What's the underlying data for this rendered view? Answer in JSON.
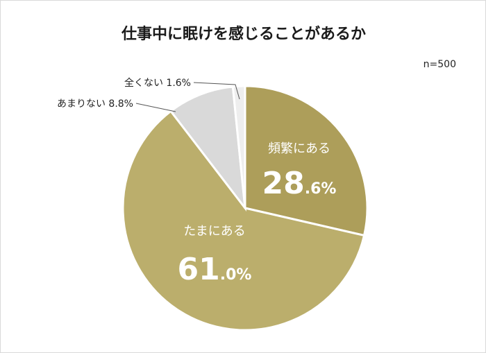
{
  "title": "仕事中に眠けを感じることがあるか",
  "sample_size": "n=500",
  "chart_data": {
    "type": "pie",
    "title": "仕事中に眠けを感じることがあるか",
    "slices": [
      {
        "label": "頻繁にある",
        "value": 28.6,
        "display_int": "28",
        "display_dec": ".6%",
        "color": "#ad9e5a",
        "label_mode": "inside"
      },
      {
        "label": "たまにある",
        "value": 61.0,
        "display_int": "61",
        "display_dec": ".0%",
        "color": "#bbae6c",
        "label_mode": "inside"
      },
      {
        "label": "あまりない",
        "value": 8.8,
        "display_text": "あまりない 8.8%",
        "color": "#d9d9d9",
        "label_mode": "outside"
      },
      {
        "label": "全くない",
        "value": 1.6,
        "display_text": "全くない 1.6%",
        "color": "#eeeeee",
        "label_mode": "outside"
      }
    ],
    "start_angle": "12 o'clock",
    "direction": "clockwise"
  }
}
